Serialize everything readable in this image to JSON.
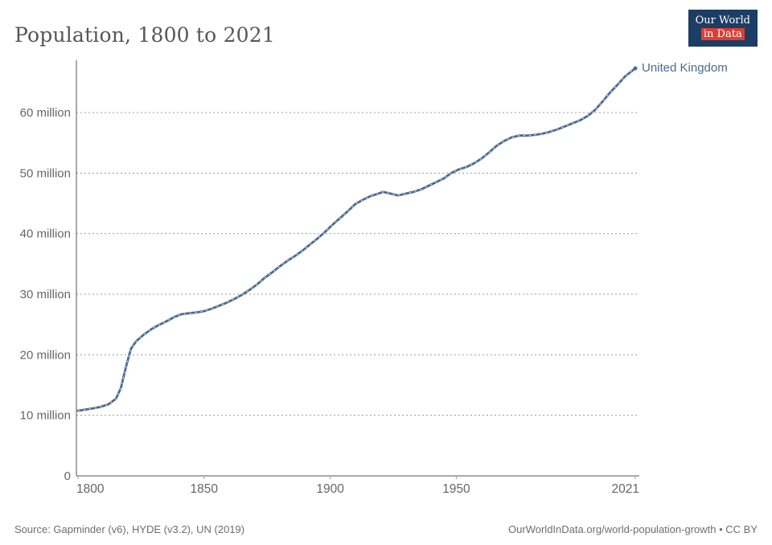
{
  "header": {
    "title": "Population, 1800 to 2021"
  },
  "logo": {
    "line1": "Our World",
    "line2": "in Data",
    "bg_color": "#1d3d63",
    "accent_color": "#dc3f34"
  },
  "footer": {
    "source": "Source: Gapminder (v6), HYDE (v3.2), UN (2019)",
    "credit": "OurWorldInData.org/world-population-growth • CC BY"
  },
  "chart_data": {
    "type": "line",
    "title": "Population, 1800 to 2021",
    "xlabel": "",
    "ylabel": "Population",
    "unit": "million people",
    "xlim": [
      1800,
      2021
    ],
    "ylim": [
      0,
      70
    ],
    "grid": "dashed horizontal",
    "legend_position": "end-of-line label",
    "grid_color": "#9b9b9b",
    "axis_color": "#565656",
    "tick_color": "#666666",
    "x_ticks": [
      {
        "year": 1800,
        "label": "1800"
      },
      {
        "year": 1850,
        "label": "1850"
      },
      {
        "year": 1900,
        "label": "1900"
      },
      {
        "year": 1950,
        "label": "1950"
      },
      {
        "year": 2021,
        "label": "2021"
      }
    ],
    "y_ticks": [
      {
        "value": 0,
        "label": "0"
      },
      {
        "value": 10,
        "label": "10 million"
      },
      {
        "value": 20,
        "label": "20 million"
      },
      {
        "value": 30,
        "label": "30 million"
      },
      {
        "value": 40,
        "label": "40 million"
      },
      {
        "value": 50,
        "label": "50 million"
      },
      {
        "value": 60,
        "label": "60 million"
      }
    ],
    "series": [
      {
        "name": "United Kingdom",
        "color": "#4C6A8F",
        "points": [
          [
            1800,
            10.75
          ],
          [
            1803,
            10.95
          ],
          [
            1806,
            11.15
          ],
          [
            1809,
            11.4
          ],
          [
            1812,
            11.8
          ],
          [
            1815,
            12.7
          ],
          [
            1817,
            14.5
          ],
          [
            1819,
            18.0
          ],
          [
            1821,
            21.0
          ],
          [
            1823,
            22.2
          ],
          [
            1826,
            23.3
          ],
          [
            1829,
            24.2
          ],
          [
            1832,
            24.9
          ],
          [
            1835,
            25.5
          ],
          [
            1838,
            26.2
          ],
          [
            1841,
            26.7
          ],
          [
            1844,
            26.85
          ],
          [
            1847,
            27.0
          ],
          [
            1850,
            27.2
          ],
          [
            1853,
            27.6
          ],
          [
            1856,
            28.1
          ],
          [
            1859,
            28.6
          ],
          [
            1862,
            29.2
          ],
          [
            1865,
            29.9
          ],
          [
            1868,
            30.7
          ],
          [
            1871,
            31.6
          ],
          [
            1874,
            32.7
          ],
          [
            1877,
            33.6
          ],
          [
            1880,
            34.6
          ],
          [
            1883,
            35.5
          ],
          [
            1886,
            36.3
          ],
          [
            1889,
            37.2
          ],
          [
            1892,
            38.2
          ],
          [
            1895,
            39.2
          ],
          [
            1898,
            40.3
          ],
          [
            1901,
            41.5
          ],
          [
            1904,
            42.6
          ],
          [
            1907,
            43.7
          ],
          [
            1910,
            44.9
          ],
          [
            1913,
            45.6
          ],
          [
            1916,
            46.2
          ],
          [
            1919,
            46.6
          ],
          [
            1921,
            46.9
          ],
          [
            1924,
            46.6
          ],
          [
            1927,
            46.3
          ],
          [
            1930,
            46.6
          ],
          [
            1933,
            46.9
          ],
          [
            1936,
            47.3
          ],
          [
            1939,
            47.9
          ],
          [
            1942,
            48.5
          ],
          [
            1945,
            49.1
          ],
          [
            1948,
            50.0
          ],
          [
            1951,
            50.6
          ],
          [
            1954,
            51.0
          ],
          [
            1957,
            51.6
          ],
          [
            1960,
            52.4
          ],
          [
            1963,
            53.4
          ],
          [
            1966,
            54.5
          ],
          [
            1969,
            55.3
          ],
          [
            1972,
            55.9
          ],
          [
            1975,
            56.2
          ],
          [
            1978,
            56.2
          ],
          [
            1981,
            56.3
          ],
          [
            1984,
            56.5
          ],
          [
            1987,
            56.8
          ],
          [
            1990,
            57.2
          ],
          [
            1993,
            57.7
          ],
          [
            1996,
            58.2
          ],
          [
            1999,
            58.7
          ],
          [
            2002,
            59.4
          ],
          [
            2005,
            60.4
          ],
          [
            2008,
            61.8
          ],
          [
            2011,
            63.3
          ],
          [
            2014,
            64.6
          ],
          [
            2017,
            66.0
          ],
          [
            2021,
            67.3
          ]
        ]
      }
    ]
  }
}
